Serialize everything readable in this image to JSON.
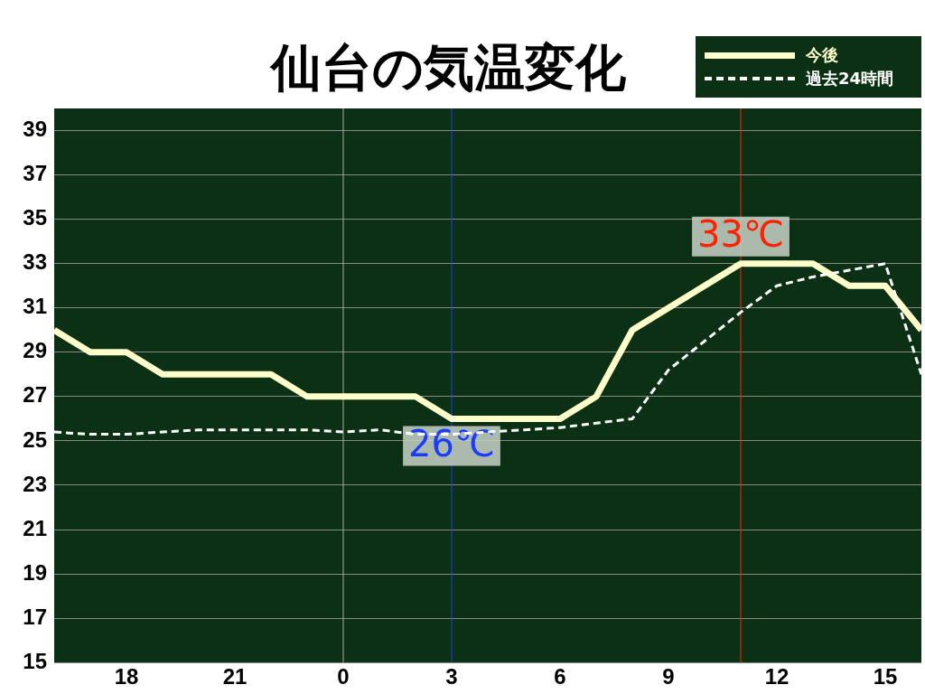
{
  "chart_data": {
    "type": "line",
    "title": "仙台の気温変化",
    "x": [
      "--01-01T16:00",
      "--01-01T17:00",
      "--01-01T18:00",
      "--01-01T19:00",
      "--01-01T20:00",
      "--01-01T21:00",
      "--01-01T22:00",
      "--01-01T23:00",
      "--01-02T00:00",
      "--01-02T01:00",
      "--01-02T02:00",
      "--01-02T03:00",
      "--01-02T04:00",
      "--01-02T05:00",
      "--01-02T06:00",
      "--01-02T07:00",
      "--01-02T08:00",
      "--01-02T09:00",
      "--01-02T10:00",
      "--01-02T11:00",
      "--01-02T12:00",
      "--01-02T13:00",
      "--01-02T14:00",
      "--01-02T15:00",
      "--01-02T16:00"
    ],
    "series": [
      {
        "name": "今後",
        "color": "#ffffcc",
        "line_style": "solid",
        "values": [
          30,
          29,
          29,
          28,
          28,
          28,
          28,
          27,
          27,
          27,
          27,
          26,
          26,
          26,
          26,
          27,
          30,
          31,
          32,
          33,
          33,
          33,
          32,
          32,
          30
        ]
      },
      {
        "name": "過去24時間",
        "color": "#ffffff",
        "line_style": "dashed",
        "values": [
          25.4,
          25.3,
          25.3,
          25.4,
          25.5,
          25.5,
          25.5,
          25.5,
          25.4,
          25.5,
          25.3,
          25.3,
          25.4,
          25.5,
          25.6,
          25.8,
          26.0,
          28.2,
          29.5,
          30.8,
          32.0,
          32.4,
          32.7,
          33.0,
          28.0
        ]
      }
    ],
    "xlim": [
      "--01-01T16:00",
      "--01-02T16:00"
    ],
    "xticks": [
      {
        "value": "--01-01T18:00",
        "label": "18"
      },
      {
        "value": "--01-01T21:00",
        "label": "21"
      },
      {
        "value": "--01-02T00:00",
        "label": "0"
      },
      {
        "value": "--01-02T03:00",
        "label": "3"
      },
      {
        "value": "--01-02T06:00",
        "label": "6"
      },
      {
        "value": "--01-02T09:00",
        "label": "9"
      },
      {
        "value": "--01-02T12:00",
        "label": "12"
      },
      {
        "value": "--01-02T15:00",
        "label": "15"
      }
    ],
    "ylim": [
      15,
      40
    ],
    "yticks": [
      15,
      17,
      19,
      21,
      23,
      25,
      27,
      29,
      31,
      33,
      35,
      37,
      39
    ],
    "grid": "y",
    "legend": "top right",
    "marker": "none",
    "ref_lines": [
      {
        "axis": "x",
        "value": "--01-02T00:00",
        "color": "#aaaaaa"
      },
      {
        "axis": "x",
        "value": "--01-02T03:00",
        "color": "#1a3cff"
      },
      {
        "axis": "x",
        "value": "--01-02T11:00",
        "color": "#ff2200"
      }
    ],
    "annotations": [
      {
        "text": "26℃",
        "x": "--01-02T03:00",
        "y": 26
      },
      {
        "text": "33℃",
        "x": "--01-02T11:00",
        "y": 33
      }
    ]
  }
}
